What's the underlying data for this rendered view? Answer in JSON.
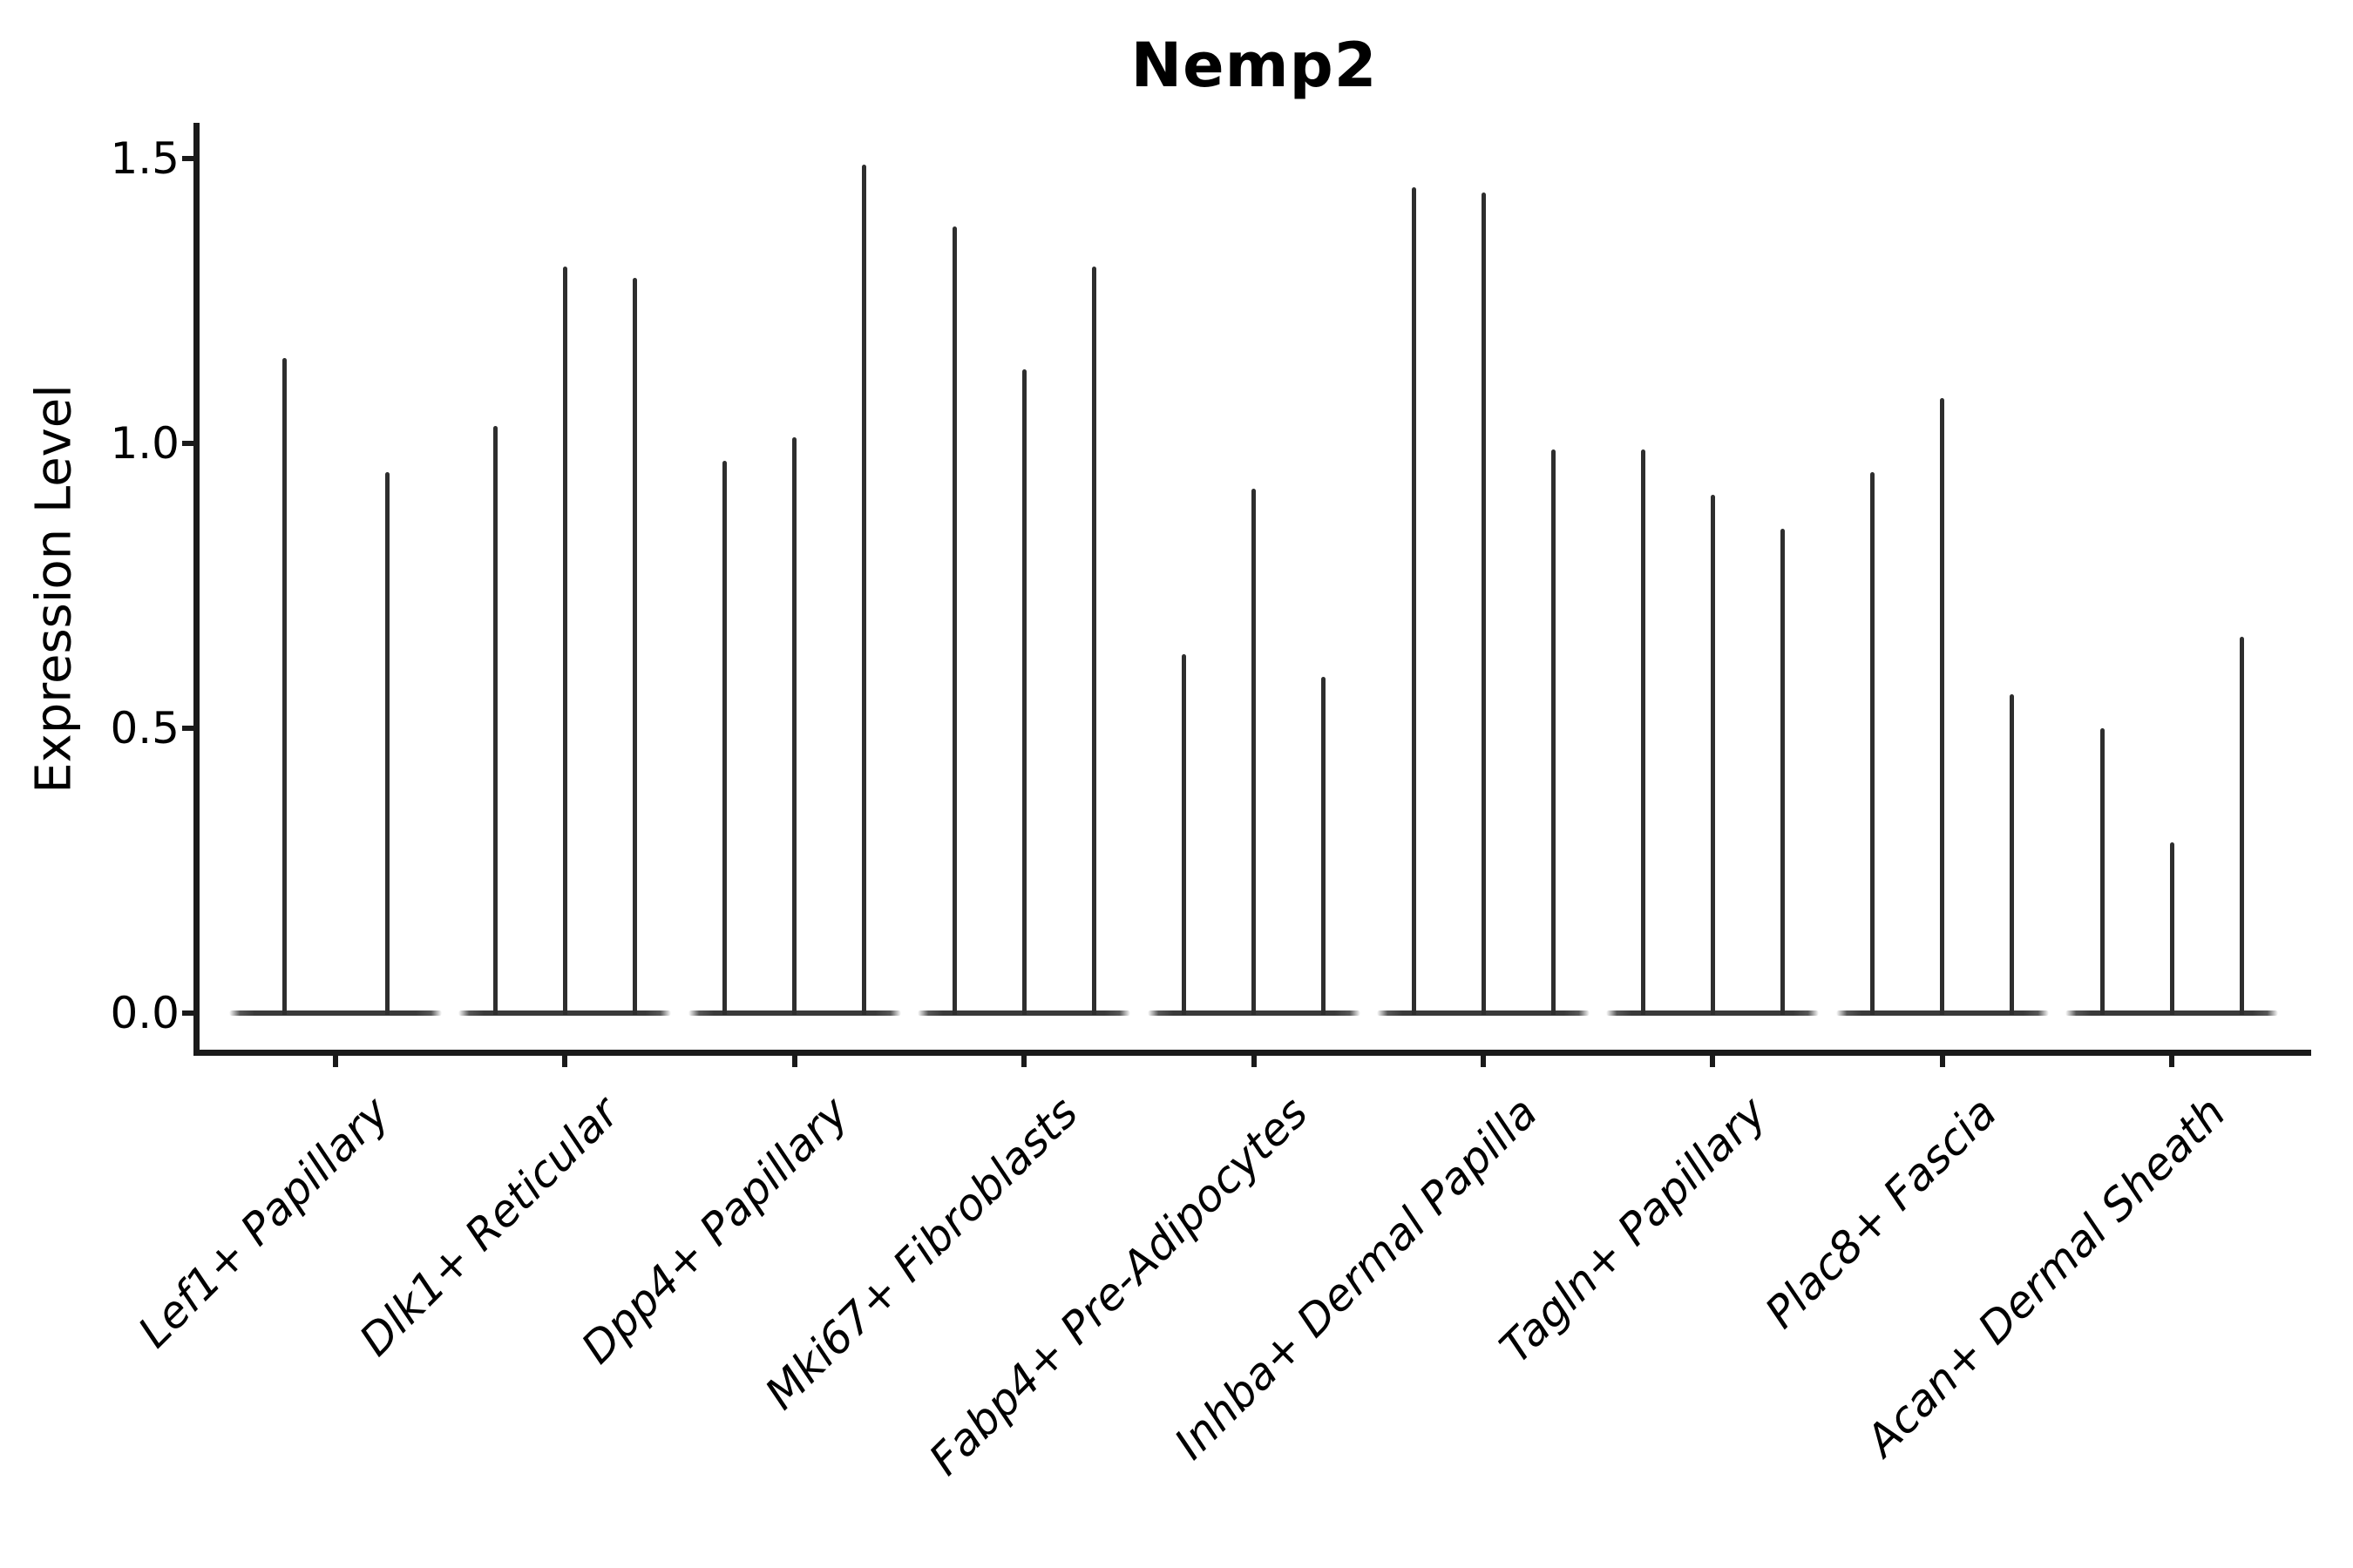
{
  "title": "Nemp2",
  "axes": {
    "ylabel": "Expression Level",
    "xlabel": ""
  },
  "colors": {
    "violin_fill": "#2e2e2e",
    "violin_baseline": "#3a3a3a",
    "axis": "#1a1a1a",
    "background": "#ffffff",
    "text": "#000000"
  },
  "chart_data": {
    "type": "violin",
    "title": "Nemp2",
    "ylabel": "Expression Level",
    "xlabel": "",
    "grid": false,
    "legend": null,
    "ylim": [
      0,
      1.57
    ],
    "yticks": [
      0.0,
      0.5,
      1.0,
      1.5
    ],
    "ytick_labels": [
      "0.0",
      "0.5",
      "1.0",
      "1.5"
    ],
    "categories": [
      "Lef1+ Papillary",
      "Dlk1+ Reticular",
      "Dpp4+ Papillary",
      "Mki67+ Fibroblasts",
      "Fabp4+ Pre-Adipocytes",
      "Inhba+ Dermal Papilla",
      "Tagln+ Papillary",
      "Plac8+ Fascia",
      "Acan+ Dermal Sheath"
    ],
    "description": "Stacked-violin style gene expression plot; each category shows 2-3 extremely thin violins: a flat body at expression 0 with a narrow tail (spike) rising to the maximum expression value.",
    "series": [
      {
        "category": "Lef1+ Papillary",
        "spike_max_expression": [
          1.15,
          0.95
        ]
      },
      {
        "category": "Dlk1+ Reticular",
        "spike_max_expression": [
          1.03,
          1.31,
          1.29
        ]
      },
      {
        "category": "Dpp4+ Papillary",
        "spike_max_expression": [
          0.97,
          1.01,
          1.49
        ]
      },
      {
        "category": "Mki67+ Fibroblasts",
        "spike_max_expression": [
          1.38,
          1.13,
          1.31
        ]
      },
      {
        "category": "Fabp4+ Pre-Adipocytes",
        "spike_max_expression": [
          0.63,
          0.92,
          0.59
        ]
      },
      {
        "category": "Inhba+ Dermal Papilla",
        "spike_max_expression": [
          1.45,
          1.44,
          0.99
        ]
      },
      {
        "category": "Tagln+ Papillary",
        "spike_max_expression": [
          0.99,
          0.91,
          0.85
        ]
      },
      {
        "category": "Plac8+ Fascia",
        "spike_max_expression": [
          0.95,
          1.08,
          0.56
        ]
      },
      {
        "category": "Acan+ Dermal Sheath",
        "spike_max_expression": [
          0.5,
          0.3,
          0.66
        ]
      }
    ]
  }
}
